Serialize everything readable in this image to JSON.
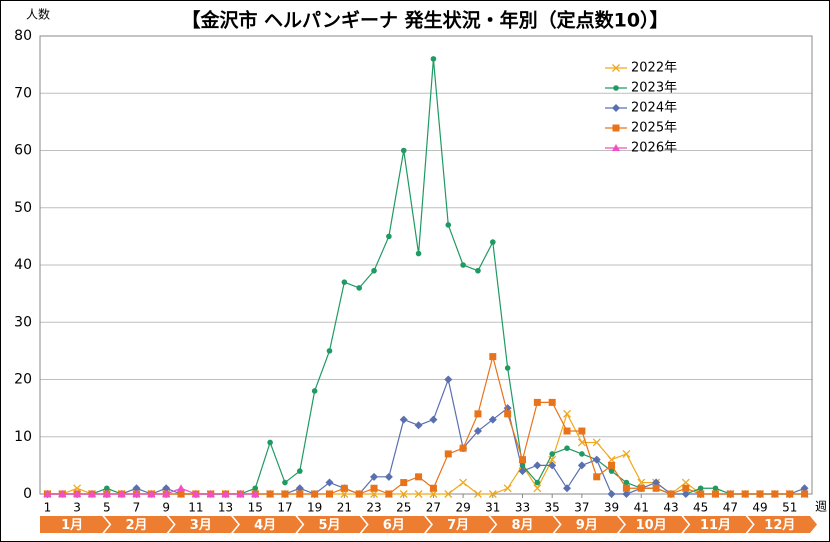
{
  "chart_data": {
    "type": "line",
    "title": "【金沢市 ヘルパンギーナ 発生状況・年別（定点数10）】",
    "y_label": "人数",
    "x_label": "週",
    "x": [
      1,
      2,
      3,
      4,
      5,
      6,
      7,
      8,
      9,
      10,
      11,
      12,
      13,
      14,
      15,
      16,
      17,
      18,
      19,
      20,
      21,
      22,
      23,
      24,
      25,
      26,
      27,
      28,
      29,
      30,
      31,
      32,
      33,
      34,
      35,
      36,
      37,
      38,
      39,
      40,
      41,
      42,
      43,
      44,
      45,
      46,
      47,
      48,
      49,
      50,
      51,
      52
    ],
    "xlim": [
      0.5,
      52.5
    ],
    "xticks": [
      1,
      3,
      5,
      7,
      9,
      11,
      13,
      15,
      17,
      19,
      21,
      23,
      25,
      27,
      29,
      31,
      33,
      35,
      37,
      39,
      41,
      43,
      45,
      47,
      49,
      51
    ],
    "ylim": [
      0,
      80
    ],
    "yticks": [
      0,
      10,
      20,
      30,
      40,
      50,
      60,
      70,
      80
    ],
    "grid": true,
    "legend": "top-right",
    "months": [
      "1月",
      "2月",
      "3月",
      "4月",
      "5月",
      "6月",
      "7月",
      "8月",
      "9月",
      "10月",
      "11月",
      "12月"
    ],
    "month_color": "#ed7d31",
    "series": [
      {
        "name": "2022年",
        "color": "#f0a81e",
        "marker": "x",
        "values": [
          0,
          0,
          1,
          0,
          0,
          0,
          0,
          0,
          0,
          0,
          0,
          0,
          0,
          0,
          0,
          0,
          0,
          0,
          0,
          0,
          0,
          0,
          0,
          0,
          0,
          0,
          0,
          0,
          2,
          0,
          0,
          1,
          5,
          1,
          6,
          14,
          9,
          9,
          6,
          7,
          2,
          2,
          0,
          2,
          0,
          0,
          0,
          0,
          0,
          0,
          0,
          0
        ]
      },
      {
        "name": "2023年",
        "color": "#1e9a62",
        "marker": "circle",
        "values": [
          0,
          0,
          0,
          0,
          1,
          0,
          0,
          0,
          0,
          0,
          0,
          0,
          0,
          0,
          1,
          9,
          2,
          4,
          18,
          25,
          37,
          36,
          39,
          45,
          60,
          42,
          76,
          47,
          40,
          39,
          44,
          22,
          5,
          2,
          7,
          8,
          7,
          6,
          4,
          2,
          1,
          1,
          0,
          0,
          1,
          1,
          0,
          0,
          0,
          0,
          0,
          0
        ]
      },
      {
        "name": "2024年",
        "color": "#5a6fb0",
        "marker": "diamond",
        "values": [
          0,
          0,
          0,
          0,
          0,
          0,
          1,
          0,
          1,
          0,
          0,
          0,
          0,
          0,
          0,
          0,
          0,
          1,
          0,
          2,
          1,
          0,
          3,
          3,
          13,
          12,
          13,
          20,
          8,
          11,
          13,
          15,
          4,
          5,
          5,
          1,
          5,
          6,
          0,
          0,
          1,
          2,
          0,
          0,
          0,
          0,
          0,
          0,
          0,
          0,
          0,
          1
        ]
      },
      {
        "name": "2025年",
        "color": "#e8731a",
        "marker": "square",
        "values": [
          0,
          0,
          0,
          0,
          0,
          0,
          0,
          0,
          0,
          0,
          0,
          0,
          0,
          0,
          0,
          0,
          0,
          0,
          0,
          0,
          1,
          0,
          1,
          0,
          2,
          3,
          1,
          7,
          8,
          14,
          24,
          14,
          6,
          16,
          16,
          11,
          11,
          3,
          5,
          1,
          1,
          1,
          0,
          1,
          0,
          0,
          0,
          0,
          0,
          0,
          0,
          0
        ]
      },
      {
        "name": "2026年",
        "color": "#f04fc8",
        "marker": "triangle",
        "values": [
          0,
          0,
          0,
          0,
          0,
          0,
          0,
          0,
          0,
          1,
          0,
          0,
          0,
          0,
          0,
          null,
          null,
          null,
          null,
          null,
          null,
          null,
          null,
          null,
          null,
          null,
          null,
          null,
          null,
          null,
          null,
          null,
          null,
          null,
          null,
          null,
          null,
          null,
          null,
          null,
          null,
          null,
          null,
          null,
          null,
          null,
          null,
          null,
          null,
          null,
          null,
          null
        ]
      }
    ]
  }
}
